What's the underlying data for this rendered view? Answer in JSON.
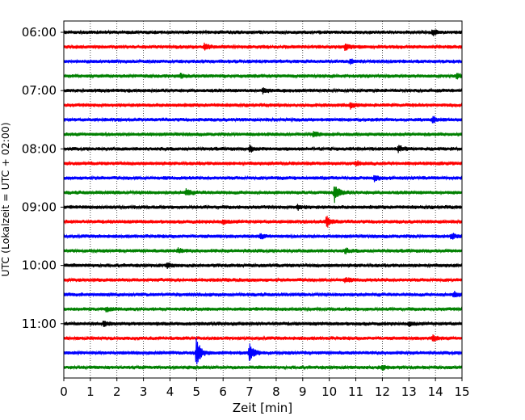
{
  "chart_data": {
    "type": "line",
    "title": "",
    "xlabel": "Zeit  [min]",
    "ylabel": "UTC (Lokalzeit = UTC + 02:00)",
    "xlim": [
      0,
      15
    ],
    "x_ticks": [
      "0",
      "1",
      "2",
      "3",
      "4",
      "5",
      "6",
      "7",
      "8",
      "9",
      "10",
      "11",
      "12",
      "13",
      "14",
      "15"
    ],
    "y_ticks": [
      "06:00",
      "07:00",
      "08:00",
      "09:00",
      "10:00",
      "11:00"
    ],
    "grid": "vertical dotted",
    "trace_interval_minutes": 15,
    "trace_colors": [
      "#000000",
      "#ff0000",
      "#0000ff",
      "#008000"
    ],
    "traces": [
      {
        "start": "06:00",
        "color": "#000000",
        "events": [
          {
            "t": 13.9,
            "amp": 0.35
          }
        ]
      },
      {
        "start": "06:15",
        "color": "#ff0000",
        "events": [
          {
            "t": 5.3,
            "amp": 0.45
          },
          {
            "t": 10.6,
            "amp": 0.4
          }
        ]
      },
      {
        "start": "06:30",
        "color": "#0000ff",
        "events": [
          {
            "t": 10.8,
            "amp": 0.3
          }
        ]
      },
      {
        "start": "06:45",
        "color": "#008000",
        "events": [
          {
            "t": 4.4,
            "amp": 0.3
          },
          {
            "t": 14.8,
            "amp": 0.3
          }
        ]
      },
      {
        "start": "07:00",
        "color": "#000000",
        "events": [
          {
            "t": 7.5,
            "amp": 0.3
          }
        ]
      },
      {
        "start": "07:15",
        "color": "#ff0000",
        "events": [
          {
            "t": 10.8,
            "amp": 0.35
          }
        ]
      },
      {
        "start": "07:30",
        "color": "#0000ff",
        "events": [
          {
            "t": 13.9,
            "amp": 0.4
          }
        ]
      },
      {
        "start": "07:45",
        "color": "#008000",
        "events": [
          {
            "t": 9.4,
            "amp": 0.3
          }
        ]
      },
      {
        "start": "08:00",
        "color": "#000000",
        "events": [
          {
            "t": 7.0,
            "amp": 0.45
          },
          {
            "t": 12.6,
            "amp": 0.45
          }
        ]
      },
      {
        "start": "08:15",
        "color": "#ff0000",
        "events": [
          {
            "t": 11.0,
            "amp": 0.3
          }
        ]
      },
      {
        "start": "08:30",
        "color": "#0000ff",
        "events": [
          {
            "t": 11.7,
            "amp": 0.5
          }
        ]
      },
      {
        "start": "08:45",
        "color": "#008000",
        "events": [
          {
            "t": 4.6,
            "amp": 0.5
          },
          {
            "t": 10.2,
            "amp": 1.2
          }
        ]
      },
      {
        "start": "09:00",
        "color": "#000000",
        "events": [
          {
            "t": 8.8,
            "amp": 0.3
          }
        ]
      },
      {
        "start": "09:15",
        "color": "#ff0000",
        "events": [
          {
            "t": 6.0,
            "amp": 0.3
          },
          {
            "t": 9.9,
            "amp": 0.8
          }
        ]
      },
      {
        "start": "09:30",
        "color": "#0000ff",
        "events": [
          {
            "t": 7.4,
            "amp": 0.3
          },
          {
            "t": 14.6,
            "amp": 0.35
          }
        ]
      },
      {
        "start": "09:45",
        "color": "#008000",
        "events": [
          {
            "t": 4.3,
            "amp": 0.3
          },
          {
            "t": 10.6,
            "amp": 0.3
          }
        ]
      },
      {
        "start": "10:00",
        "color": "#000000",
        "events": [
          {
            "t": 3.9,
            "amp": 0.3
          }
        ]
      },
      {
        "start": "10:15",
        "color": "#ff0000",
        "events": [
          {
            "t": 10.6,
            "amp": 0.3
          }
        ]
      },
      {
        "start": "10:30",
        "color": "#0000ff",
        "events": [
          {
            "t": 14.7,
            "amp": 0.35
          }
        ]
      },
      {
        "start": "10:45",
        "color": "#008000",
        "events": [
          {
            "t": 1.6,
            "amp": 0.3
          }
        ]
      },
      {
        "start": "11:00",
        "color": "#000000",
        "events": [
          {
            "t": 1.5,
            "amp": 0.3
          },
          {
            "t": 13.0,
            "amp": 0.3
          }
        ]
      },
      {
        "start": "11:15",
        "color": "#ff0000",
        "events": [
          {
            "t": 13.9,
            "amp": 0.35
          }
        ]
      },
      {
        "start": "11:30",
        "color": "#0000ff",
        "events": [
          {
            "t": 5.0,
            "amp": 2.0
          },
          {
            "t": 7.0,
            "amp": 1.3
          }
        ]
      },
      {
        "start": "11:45",
        "color": "#008000",
        "events": [
          {
            "t": 12.0,
            "amp": 0.3
          }
        ]
      }
    ]
  }
}
